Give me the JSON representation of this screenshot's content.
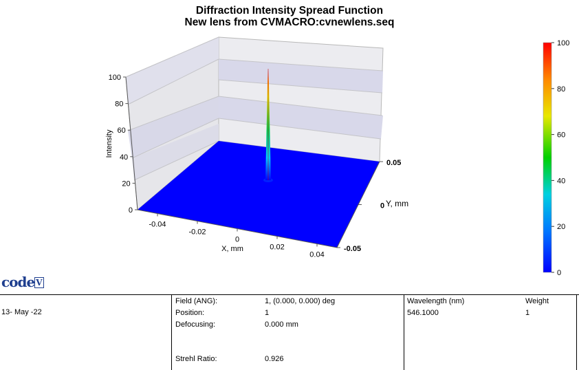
{
  "chart_data": {
    "type": "surface-3d",
    "title": "Diffraction Intensity Spread Function",
    "subtitle": "New lens from CVMACRO:cvnewlens.seq",
    "xlabel": "X, mm",
    "ylabel": "Y, mm",
    "zlabel": "Intensity",
    "x_ticks": [
      "-0.04",
      "-0.02",
      "0",
      "0.02",
      "0.04"
    ],
    "y_ticks": [
      "0.05",
      "0",
      "-0.05"
    ],
    "z_ticks": [
      "0",
      "20",
      "40",
      "60",
      "80",
      "100"
    ],
    "xlim": [
      -0.05,
      0.05
    ],
    "ylim": [
      -0.05,
      0.05
    ],
    "zlim": [
      0,
      100
    ],
    "peak": {
      "x": 0,
      "y": 0,
      "z": 100
    },
    "colorbar": {
      "min": 0,
      "max": 100,
      "ticks": [
        "0",
        "20",
        "40",
        "60",
        "80",
        "100"
      ],
      "colors": [
        "#0000ff",
        "#00aaff",
        "#00e0c0",
        "#00d000",
        "#e8e800",
        "#ff8800",
        "#ff0000"
      ]
    }
  },
  "logo_text": "code",
  "logo_suffix": "V",
  "info": {
    "date": "13- May -22",
    "field_label": "Field (ANG):",
    "field_value": "1, (0.000, 0.000) deg",
    "position_label": "Position:",
    "position_value": "1",
    "defocusing_label": "Defocusing:",
    "defocusing_value": "0.000 mm",
    "strehl_label": "Strehl Ratio:",
    "strehl_value": "0.926",
    "wavelength_label": "Wavelength (nm)",
    "wavelength_value": "546.1000",
    "weight_label": "Weight",
    "weight_value": "1"
  },
  "colors": {
    "floor": "#0000ff",
    "wall": "#e8e8ec",
    "band": "#d8d8ea",
    "grid": "#c0c0c0"
  }
}
